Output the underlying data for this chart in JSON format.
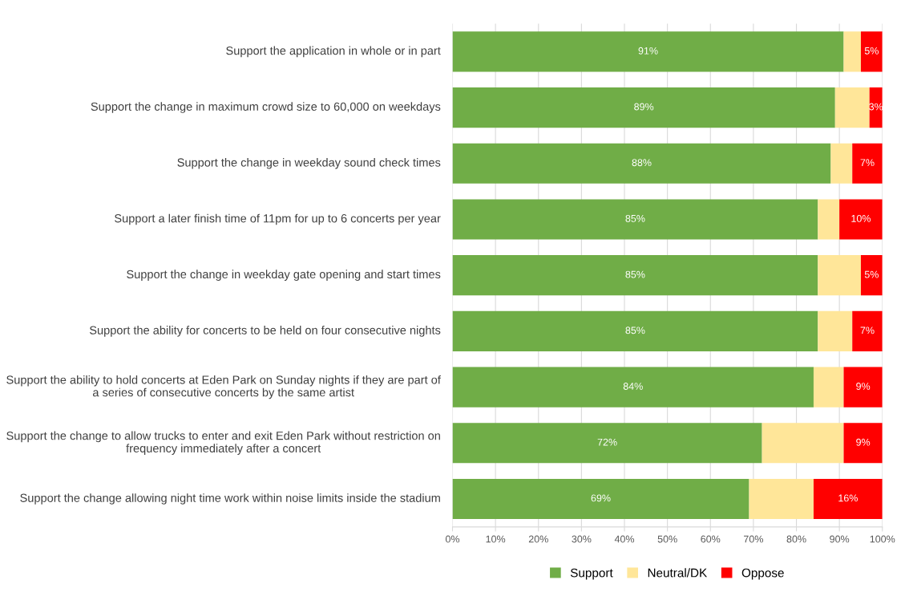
{
  "chart_data": {
    "type": "bar",
    "orientation": "horizontal",
    "stacked": true,
    "categories": [
      "Support the application in whole or in part",
      "Support the change in maximum crowd size to 60,000 on weekdays",
      "Support the change in weekday sound check times",
      "Support a later finish time of 11pm for up to 6 concerts per year",
      "Support the change in weekday gate opening and start times",
      "Support the ability for concerts to be held on four consecutive nights",
      "Support the ability to hold concerts at Eden Park on Sunday nights if they are part of a series of consecutive concerts by the same artist",
      "Support the change to allow trucks to enter and exit Eden Park without restriction on frequency immediately after a concert",
      "Support the change allowing night time work within noise limits inside the stadium"
    ],
    "series": [
      {
        "name": "Support",
        "color": "#70ad47",
        "values": [
          91,
          89,
          88,
          85,
          85,
          85,
          84,
          72,
          69
        ],
        "value_labels": [
          "91%",
          "89%",
          "88%",
          "85%",
          "85%",
          "85%",
          "84%",
          "72%",
          "69%"
        ]
      },
      {
        "name": "Neutral/DK",
        "color": "#ffe699",
        "values": [
          4,
          8,
          5,
          5,
          10,
          8,
          7,
          19,
          15
        ]
      },
      {
        "name": "Oppose",
        "color": "#ff0000",
        "values": [
          5,
          3,
          7,
          10,
          5,
          7,
          9,
          9,
          16
        ],
        "value_labels": [
          "5%",
          "3%",
          "7%",
          "10%",
          "5%",
          "7%",
          "9%",
          "9%",
          "16%"
        ]
      }
    ],
    "xlim": [
      0,
      100
    ],
    "xticks": [
      {
        "value": 0,
        "label": "0%"
      },
      {
        "value": 10,
        "label": "10%"
      },
      {
        "value": 20,
        "label": "20%"
      },
      {
        "value": 30,
        "label": "30%"
      },
      {
        "value": 40,
        "label": "40%"
      },
      {
        "value": 50,
        "label": "50%"
      },
      {
        "value": 60,
        "label": "60%"
      },
      {
        "value": 70,
        "label": "70%"
      },
      {
        "value": 80,
        "label": "80%"
      },
      {
        "value": 90,
        "label": "90%"
      },
      {
        "value": 100,
        "label": "100%"
      }
    ],
    "grid": "x",
    "legend": "bottom"
  }
}
